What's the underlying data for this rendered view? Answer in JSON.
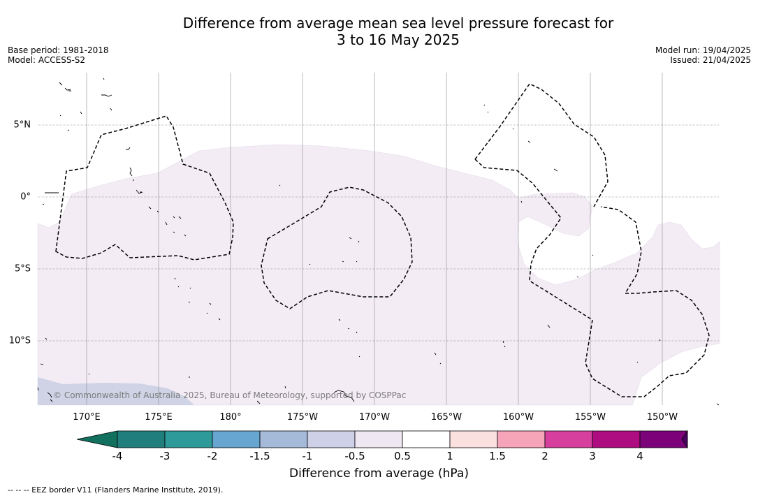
{
  "title_line1": "Difference from average mean sea level pressure forecast for",
  "title_line2": "3 to 16 May 2025",
  "base_period": "Base period: 1981-2018",
  "model": "Model: ACCESS-S2",
  "model_run": "Model run: 19/04/2025",
  "issued": "Issued: 21/04/2025",
  "lon_labels": [
    "170°E",
    "175°E",
    "180°",
    "175°W",
    "170°W",
    "165°W",
    "160°W",
    "155°W",
    "150°W"
  ],
  "lat_labels": [
    "5°N",
    "0°",
    "5°S",
    "10°S"
  ],
  "copyright": "© Commonwealth of Australia 2025, Bureau of Meteorology, supported by COSPPac",
  "colorbar": {
    "ticks": [
      "-4",
      "-3",
      "-2",
      "-1.5",
      "-1",
      "-0.5",
      "0.5",
      "1",
      "1.5",
      "2",
      "3",
      "4"
    ],
    "colors": [
      "#207f7c",
      "#2e9a9a",
      "#67a6d0",
      "#a5b9d8",
      "#cdd0e6",
      "#efe8f2",
      "#ffffff",
      "#fbe0e0",
      "#f6a4b8",
      "#d63f9e",
      "#ad0d81",
      "#7c0279"
    ],
    "under_color": "#11705e",
    "over_color": "#4a0062",
    "label": "Difference from average (hPa)"
  },
  "footer": "--  --  -- EEZ border V11 (Flanders Marine Institute, 2019)."
}
